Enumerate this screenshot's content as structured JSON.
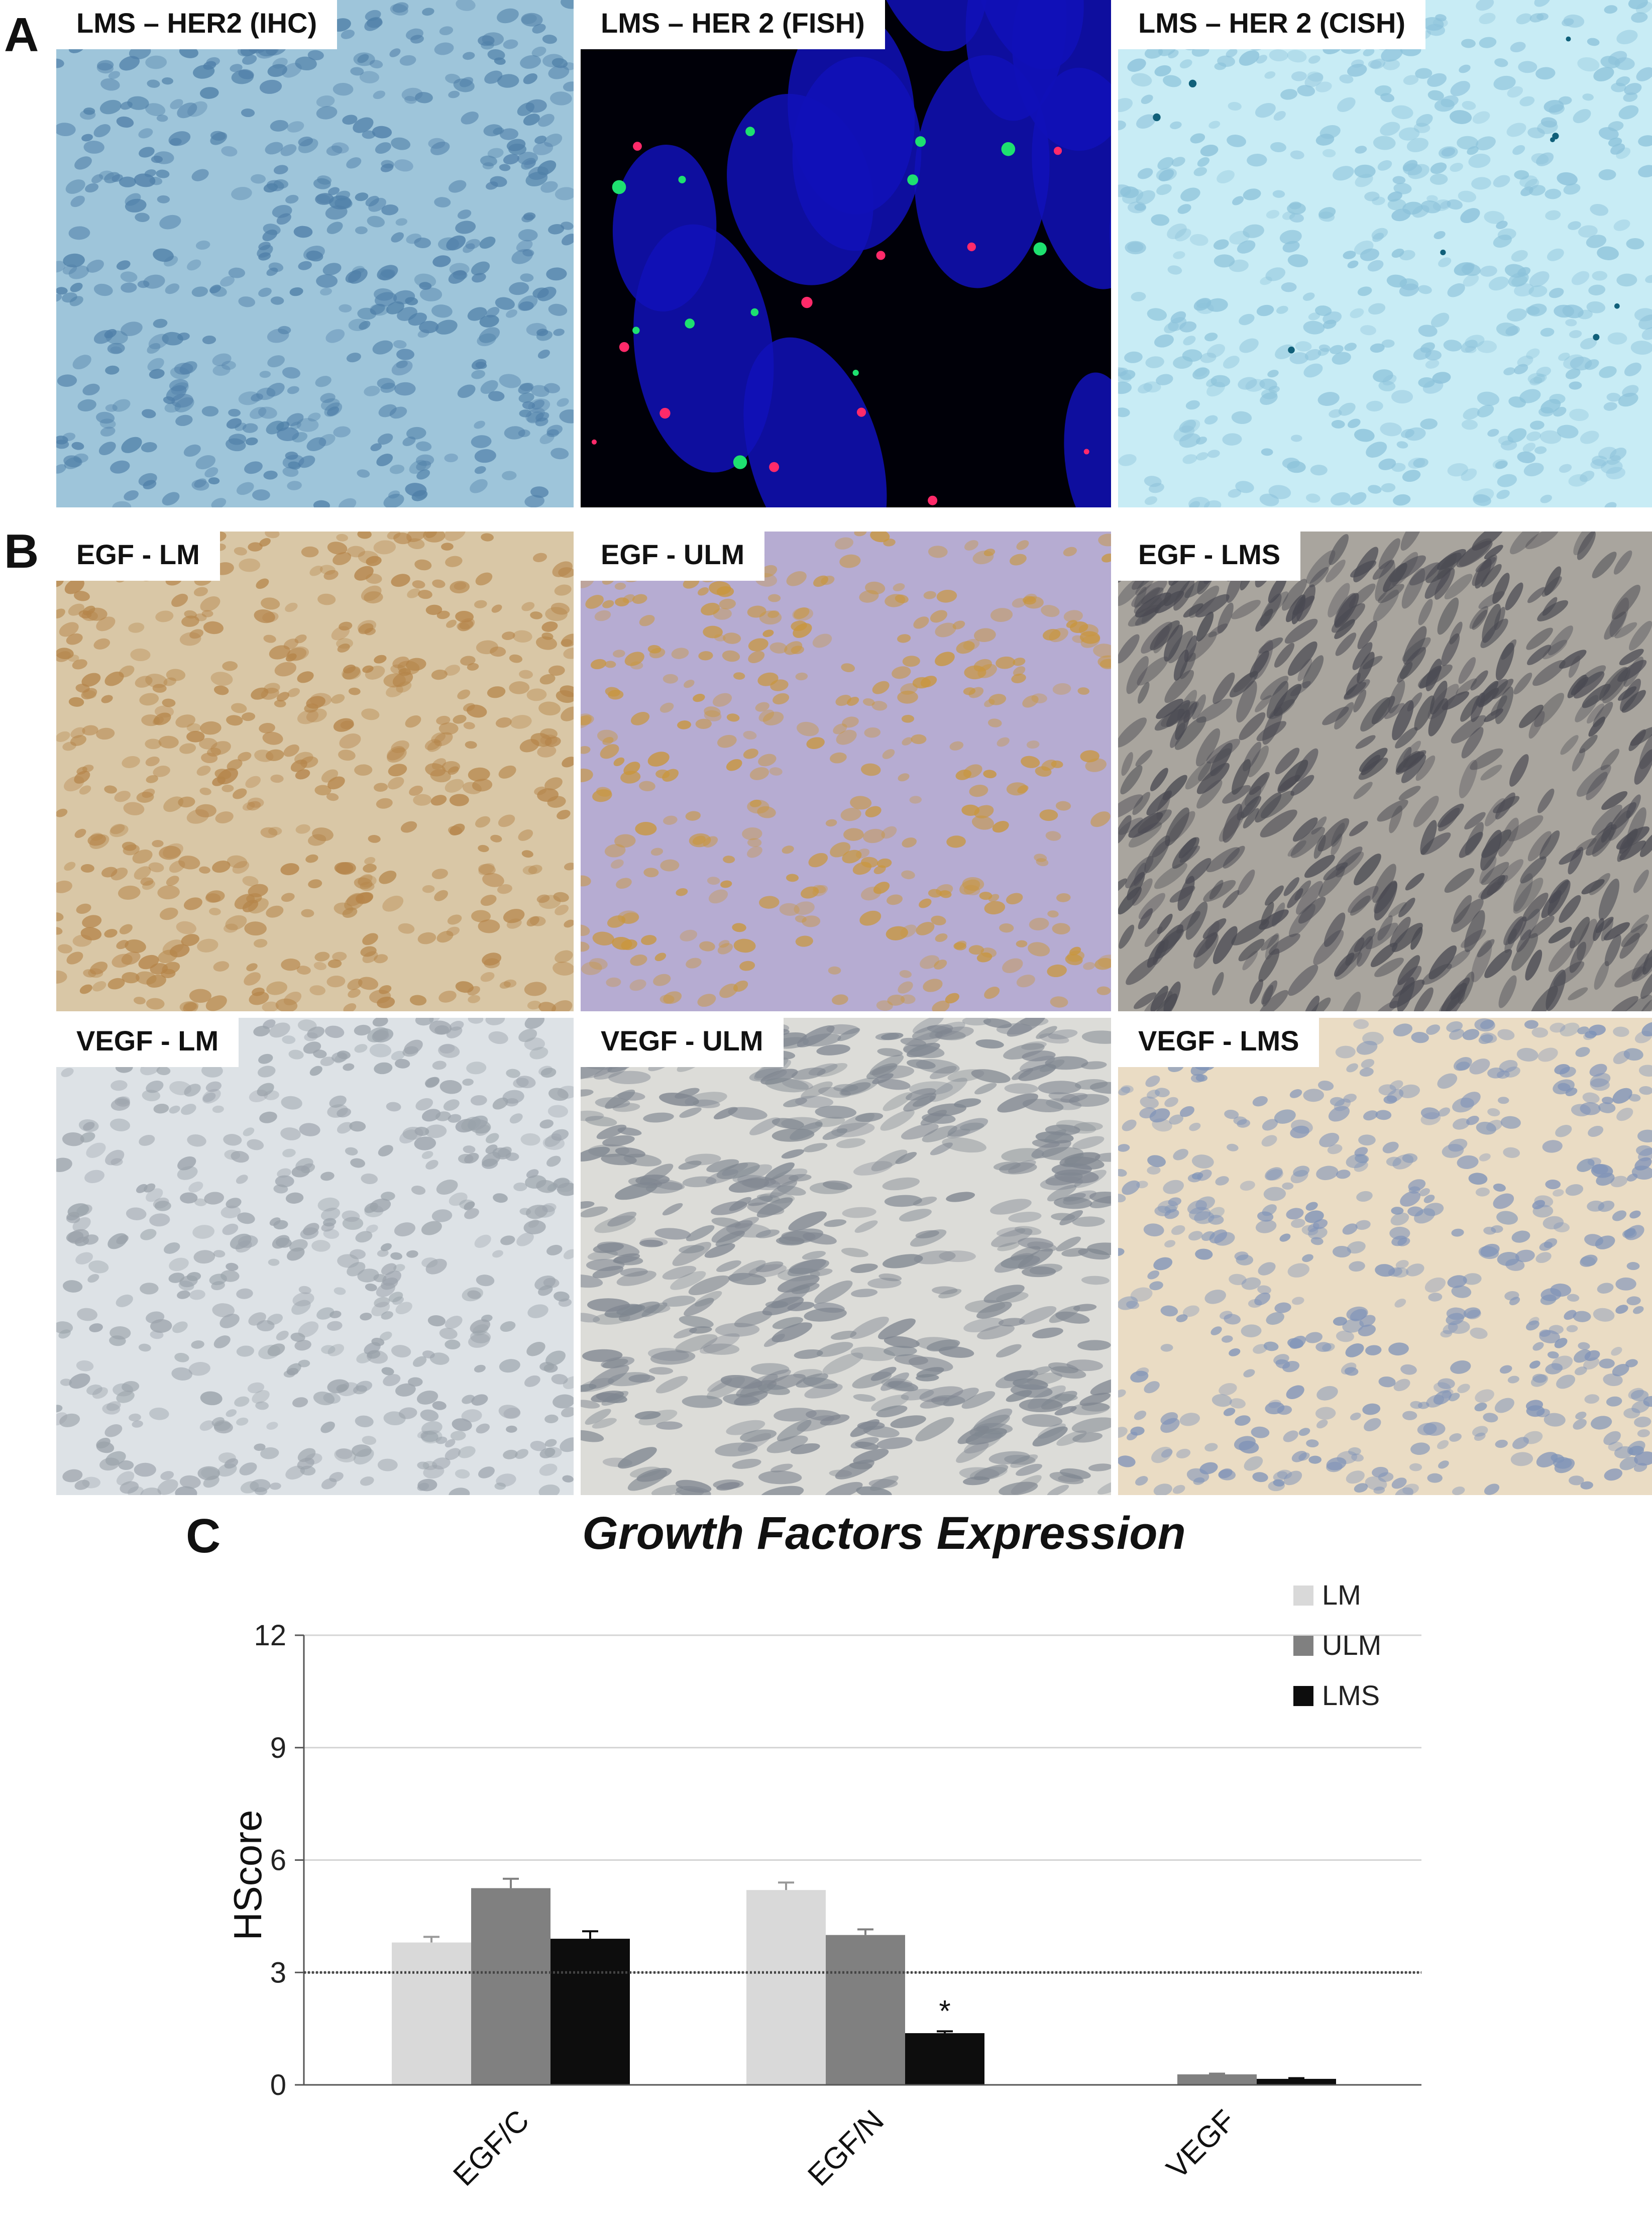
{
  "panels": {
    "A": "A",
    "B": "B",
    "C": "C"
  },
  "tiles": [
    {
      "label": "LMS – HER2 (IHC)",
      "style": "ihc-blue",
      "bg": "#9ec5da",
      "cell": "#4f7fa8"
    },
    {
      "label": "LMS – HER 2 (FISH)",
      "style": "fish",
      "bg": "#000008",
      "cell": "#1010b8"
    },
    {
      "label": "LMS – HER 2 (CISH)",
      "style": "cish",
      "bg": "#c8ecf5",
      "cell": "#8cc2da"
    },
    {
      "label": "EGF  - LM",
      "style": "brown",
      "bg": "#d9c7a6",
      "cell": "#b5854a"
    },
    {
      "label": "EGF  - ULM",
      "style": "brown-violet",
      "bg": "#b6acd2",
      "cell": "#c9963c"
    },
    {
      "label": "EGF  - LMS",
      "style": "grey",
      "bg": "#a9a59e",
      "cell": "#4a4a52"
    },
    {
      "label": "VEGF  - LM",
      "style": "pale",
      "bg": "#dde2e6",
      "cell": "#9aa2aa"
    },
    {
      "label": "VEGF  - ULM",
      "style": "pale2",
      "bg": "#dcdcd8",
      "cell": "#7f8690"
    },
    {
      "label": "VEGF  - LMS",
      "style": "peach",
      "bg": "#eadcc4",
      "cell": "#7f93b8"
    }
  ],
  "chart_data": {
    "type": "bar",
    "title": "Growth Factors Expression",
    "ylabel": "HScore",
    "xlabel": "",
    "categories": [
      "EGF/C",
      "EGF/N",
      "VEGF"
    ],
    "series": [
      {
        "name": "LM",
        "values": [
          3.8,
          5.2,
          0
        ],
        "errors": [
          0.15,
          0.2,
          0
        ],
        "color": "#d9d9d9"
      },
      {
        "name": "ULM",
        "values": [
          5.25,
          4.0,
          0.28
        ],
        "errors": [
          0.25,
          0.15,
          0.02
        ],
        "color": "#808080"
      },
      {
        "name": "LMS",
        "values": [
          3.9,
          1.38,
          0.16
        ],
        "errors": [
          0.2,
          0.05,
          0.02
        ],
        "color": "#0d0d0d"
      }
    ],
    "ylim": [
      0,
      12
    ],
    "yticks": [
      "0",
      "3",
      "6",
      "9",
      "12"
    ],
    "grid": true,
    "reference_line": 3,
    "legend": "top-right",
    "annotation": {
      "text": "*",
      "category": "EGF/N",
      "series": "LMS"
    }
  }
}
